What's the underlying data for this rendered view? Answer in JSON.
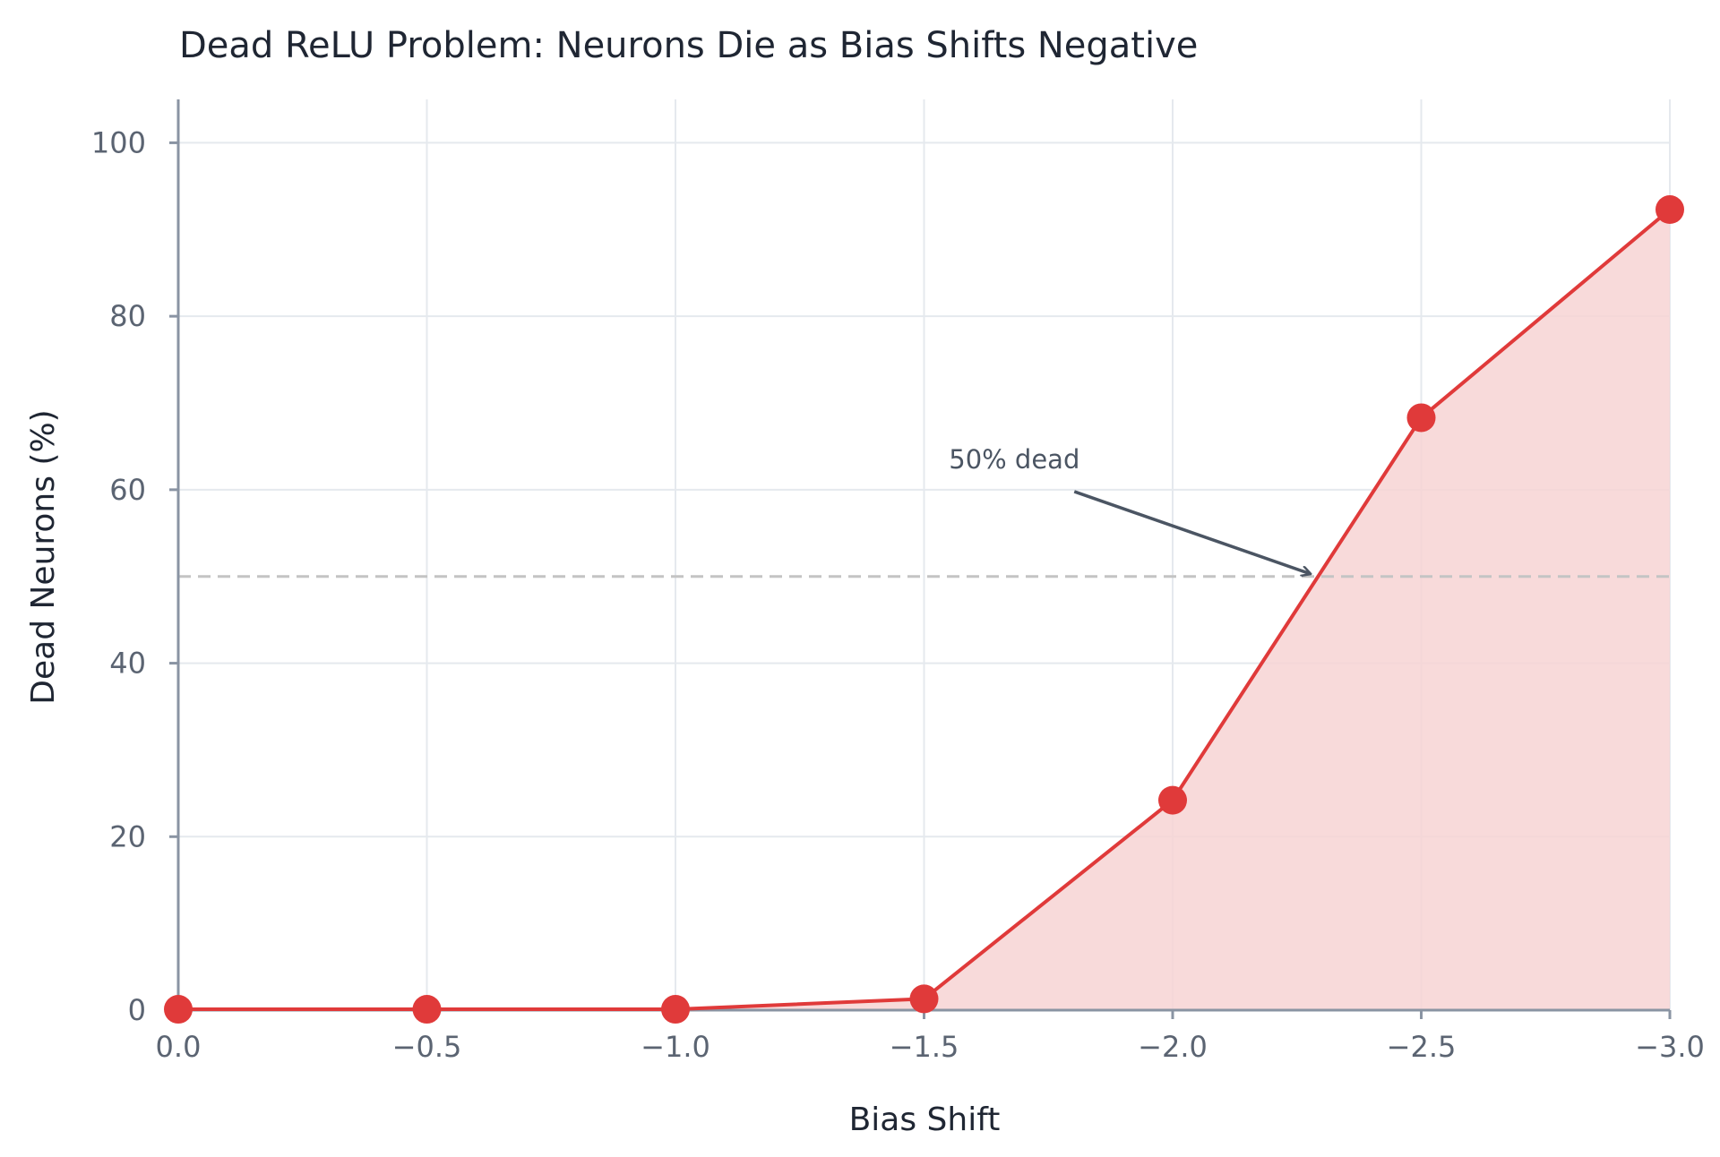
{
  "chart_data": {
    "type": "line",
    "title": "Dead ReLU Problem: Neurons Die as Bias Shifts Negative",
    "xlabel": "Bias Shift",
    "ylabel": "Dead Neurons (%)",
    "x": [
      0.0,
      -0.5,
      -1.0,
      -1.5,
      -2.0,
      -2.5,
      -3.0
    ],
    "x_tick_labels": [
      "0.0",
      "−0.5",
      "−1.0",
      "−1.5",
      "−2.0",
      "−2.5",
      "−3.0"
    ],
    "y_ticks": [
      0,
      20,
      40,
      60,
      80,
      100
    ],
    "y_tick_labels": [
      "0",
      "20",
      "40",
      "60",
      "80",
      "100"
    ],
    "xlim": [
      0.0,
      -3.0
    ],
    "ylim": [
      0,
      105
    ],
    "grid": true,
    "series": [
      {
        "values": [
          0.1,
          0.1,
          0.1,
          1.3,
          24.2,
          68.3,
          92.3
        ],
        "color": "#e03a3a",
        "fill_color": "#f7d3d3",
        "marker": "circle"
      }
    ],
    "reference_line": {
      "y": 50,
      "style": "dashed",
      "color": "#c4c4c4"
    },
    "annotation": {
      "text": "50% dead",
      "text_x": -1.55,
      "text_y": 63.5,
      "arrow_target_x": -2.28,
      "arrow_target_y": 50,
      "color": "#4b5563"
    }
  }
}
